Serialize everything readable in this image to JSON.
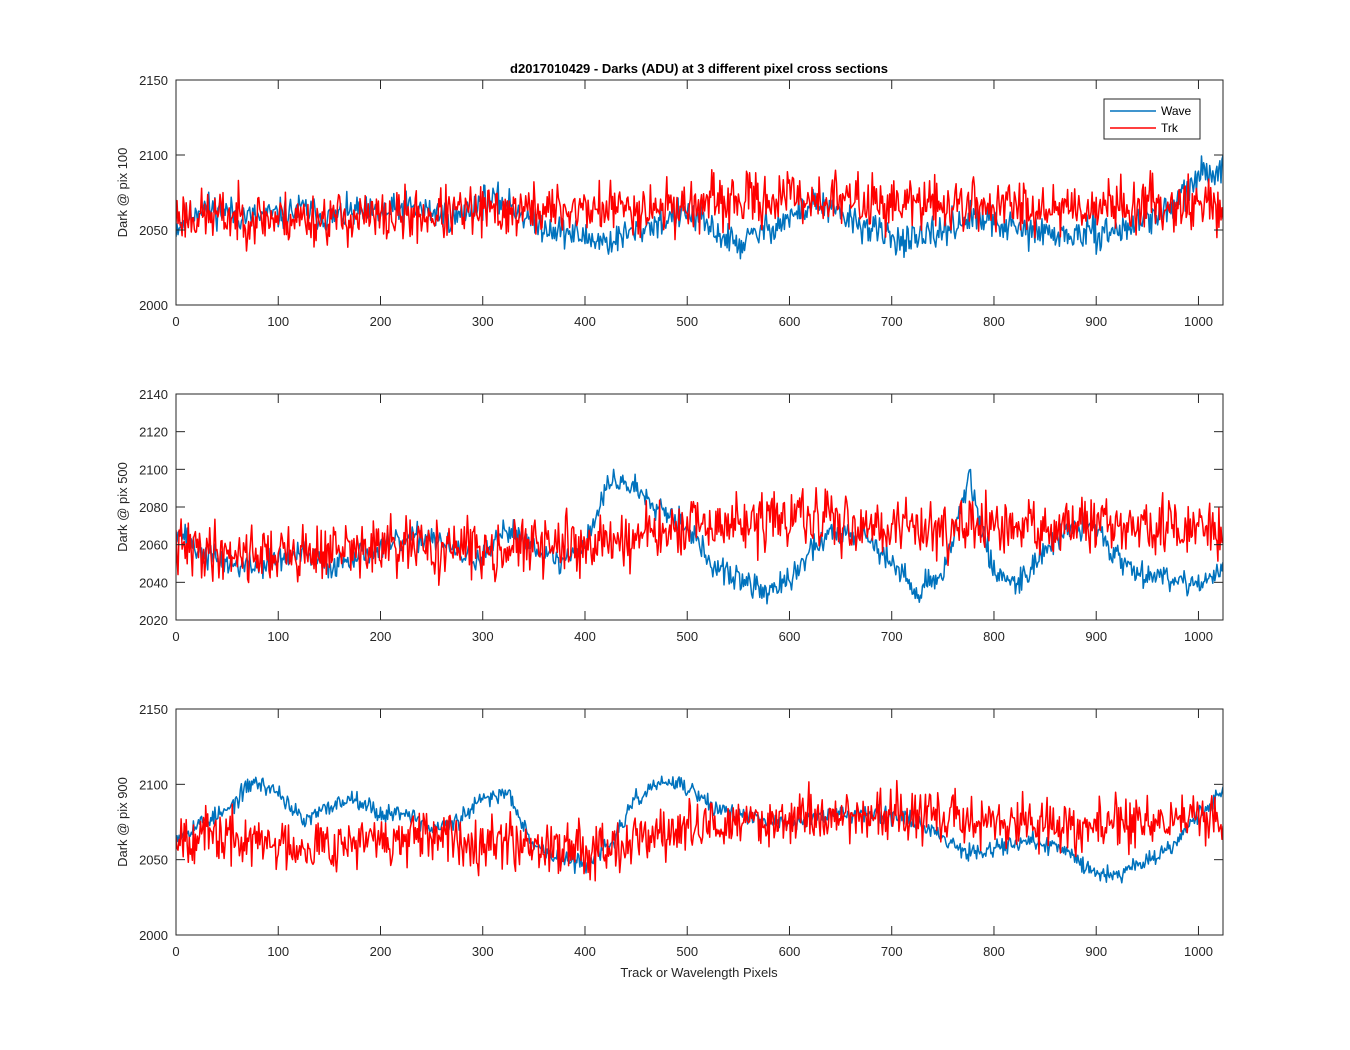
{
  "figure": {
    "title": "d2017010429 - Darks (ADU) at 3 different pixel cross sections",
    "xlabel": "Track or Wavelength Pixels",
    "legend": {
      "placement": "top-right",
      "entries": [
        "Wave",
        "Trk"
      ]
    },
    "colors": {
      "Wave": "#0072bd",
      "Trk": "#ff0000",
      "axes": "#262626",
      "background": "#ffffff"
    }
  },
  "chart_data": [
    {
      "type": "line",
      "ylabel": "Dark @ pix 100",
      "xlim": [
        0,
        1024
      ],
      "ylim": [
        2000,
        2150
      ],
      "xticks": [
        0,
        100,
        200,
        300,
        400,
        500,
        600,
        700,
        800,
        900,
        1000
      ],
      "yticks": [
        2000,
        2050,
        2100,
        2150
      ],
      "legend": "top-right",
      "series": [
        {
          "name": "Wave",
          "color": "#0072bd",
          "noise": 9,
          "seed": 11,
          "x": [
            0,
            25,
            50,
            75,
            100,
            125,
            150,
            175,
            200,
            225,
            250,
            275,
            300,
            325,
            350,
            375,
            400,
            425,
            450,
            475,
            500,
            525,
            550,
            575,
            600,
            625,
            650,
            675,
            700,
            725,
            750,
            775,
            800,
            825,
            850,
            875,
            900,
            925,
            950,
            975,
            1000,
            1024
          ],
          "y": [
            2052,
            2066,
            2062,
            2058,
            2060,
            2064,
            2058,
            2062,
            2060,
            2065,
            2062,
            2058,
            2070,
            2068,
            2055,
            2050,
            2045,
            2042,
            2050,
            2056,
            2062,
            2050,
            2040,
            2050,
            2058,
            2068,
            2060,
            2052,
            2045,
            2042,
            2050,
            2058,
            2055,
            2050,
            2048,
            2046,
            2048,
            2050,
            2058,
            2065,
            2085,
            2092
          ]
        },
        {
          "name": "Trk",
          "color": "#ff0000",
          "noise": 15,
          "seed": 23,
          "x": [
            0,
            100,
            200,
            300,
            400,
            500,
            600,
            700,
            800,
            900,
            1000,
            1024
          ],
          "y": [
            2060,
            2058,
            2058,
            2062,
            2064,
            2066,
            2072,
            2068,
            2066,
            2066,
            2068,
            2065
          ]
        }
      ]
    },
    {
      "type": "line",
      "ylabel": "Dark @ pix 500",
      "xlim": [
        0,
        1024
      ],
      "ylim": [
        2020,
        2140
      ],
      "xticks": [
        0,
        100,
        200,
        300,
        400,
        500,
        600,
        700,
        800,
        900,
        1000
      ],
      "yticks": [
        2020,
        2040,
        2060,
        2080,
        2100,
        2120,
        2140
      ],
      "series": [
        {
          "name": "Wave",
          "color": "#0072bd",
          "noise": 6,
          "seed": 37,
          "x": [
            0,
            25,
            50,
            75,
            100,
            125,
            150,
            175,
            200,
            225,
            250,
            275,
            300,
            325,
            350,
            375,
            400,
            425,
            450,
            475,
            500,
            525,
            550,
            575,
            600,
            625,
            650,
            675,
            700,
            725,
            750,
            775,
            800,
            825,
            850,
            875,
            900,
            925,
            950,
            975,
            1000,
            1024
          ],
          "y": [
            2070,
            2055,
            2050,
            2048,
            2052,
            2055,
            2048,
            2055,
            2058,
            2062,
            2065,
            2055,
            2052,
            2068,
            2060,
            2050,
            2060,
            2095,
            2090,
            2080,
            2070,
            2048,
            2042,
            2035,
            2040,
            2060,
            2068,
            2065,
            2050,
            2035,
            2045,
            2095,
            2045,
            2040,
            2058,
            2068,
            2070,
            2050,
            2045,
            2042,
            2040,
            2045
          ]
        },
        {
          "name": "Trk",
          "color": "#ff0000",
          "noise": 13,
          "seed": 41,
          "x": [
            0,
            100,
            200,
            300,
            400,
            500,
            600,
            700,
            800,
            900,
            1000,
            1024
          ],
          "y": [
            2058,
            2055,
            2058,
            2058,
            2060,
            2068,
            2074,
            2070,
            2068,
            2070,
            2068,
            2066
          ]
        }
      ]
    },
    {
      "type": "line",
      "ylabel": "Dark @ pix 900",
      "xlim": [
        0,
        1024
      ],
      "ylim": [
        2000,
        2150
      ],
      "xticks": [
        0,
        100,
        200,
        300,
        400,
        500,
        600,
        700,
        800,
        900,
        1000
      ],
      "yticks": [
        2000,
        2050,
        2100,
        2150
      ],
      "series": [
        {
          "name": "Wave",
          "color": "#0072bd",
          "noise": 5,
          "seed": 53,
          "x": [
            0,
            25,
            50,
            75,
            100,
            125,
            150,
            175,
            200,
            225,
            250,
            275,
            300,
            325,
            350,
            375,
            400,
            425,
            450,
            475,
            500,
            525,
            550,
            575,
            600,
            625,
            650,
            675,
            700,
            725,
            750,
            775,
            800,
            825,
            850,
            875,
            900,
            925,
            950,
            975,
            1000,
            1024
          ],
          "y": [
            2065,
            2075,
            2082,
            2102,
            2095,
            2075,
            2085,
            2092,
            2080,
            2082,
            2070,
            2075,
            2090,
            2095,
            2060,
            2050,
            2048,
            2060,
            2090,
            2102,
            2098,
            2085,
            2080,
            2075,
            2075,
            2078,
            2080,
            2082,
            2080,
            2075,
            2065,
            2055,
            2058,
            2062,
            2060,
            2055,
            2040,
            2042,
            2050,
            2060,
            2080,
            2095
          ]
        },
        {
          "name": "Trk",
          "color": "#ff0000",
          "noise": 15,
          "seed": 67,
          "x": [
            0,
            100,
            200,
            300,
            400,
            500,
            600,
            700,
            800,
            900,
            1000,
            1024
          ],
          "y": [
            2068,
            2060,
            2062,
            2064,
            2058,
            2070,
            2078,
            2080,
            2075,
            2072,
            2078,
            2075
          ]
        }
      ]
    }
  ]
}
